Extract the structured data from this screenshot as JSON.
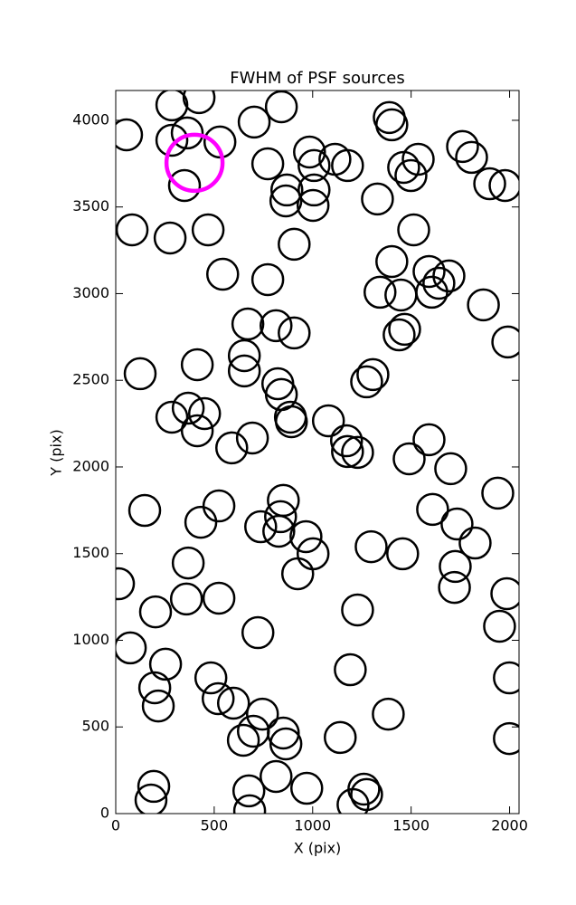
{
  "chart_data": {
    "type": "scatter",
    "title": "FWHM of PSF sources",
    "x_label": "X (pix)",
    "y_label": "Y (pix)",
    "color": "#000000",
    "xlim": [
      0,
      2048
    ],
    "ylim": [
      0,
      4172
    ],
    "xticks": [
      0,
      500,
      1000,
      1500,
      2000
    ],
    "yticks": [
      0,
      500,
      1000,
      1500,
      2000,
      2500,
      3000,
      3500,
      4000
    ],
    "x": [
      55,
      285,
      423,
      285,
      363,
      529,
      349,
      703,
      841,
      83,
      276,
      469,
      543,
      772,
      869,
      864,
      1007,
      1002,
      984,
      1113,
      1177,
      1007,
      906,
      772,
      671,
      814,
      906,
      1329,
      1389,
      1402,
      1462,
      1536,
      1499,
      1761,
      1807,
      1899,
      1977,
      1513,
      1402,
      1342,
      1448,
      1591,
      1605,
      1641,
      1692,
      1867,
      1991,
      1439,
      1467,
      653,
      653,
      414,
      124,
      823,
      841,
      892,
      887,
      1080,
      1172,
      1177,
      1228,
      1274,
      1306,
      368,
      451,
      285,
      414,
      694,
      589,
      147,
      524,
      432,
      736,
      851,
      837,
      828,
      966,
      1002,
      924,
      368,
      359,
      524,
      202,
      14,
      74,
      722,
      1228,
      1297,
      1457,
      1490,
      1591,
      1701,
      1609,
      1733,
      1825,
      1724,
      1720,
      1940,
      1986,
      1949,
      1999,
      1999,
      198,
      253,
      216,
      483,
      520,
      598,
      648,
      699,
      745,
      851,
      864,
      1191,
      1140,
      1384,
      193,
      179,
      676,
      680,
      814,
      970,
      1205,
      1260,
      1274
    ],
    "y": [
      3916,
      4089,
      4131,
      3885,
      3927,
      3875,
      3624,
      3990,
      4078,
      3368,
      3321,
      3368,
      3112,
      3749,
      3598,
      3535,
      3598,
      3509,
      3817,
      3775,
      3739,
      3739,
      3285,
      3081,
      2825,
      2815,
      2773,
      3546,
      4016,
      3974,
      3728,
      3775,
      3681,
      3849,
      3786,
      3634,
      3624,
      3368,
      3185,
      3008,
      2992,
      3128,
      3008,
      3060,
      3102,
      2935,
      2721,
      2762,
      2794,
      2642,
      2554,
      2590,
      2538,
      2480,
      2418,
      2261,
      2287,
      2266,
      2151,
      2089,
      2084,
      2491,
      2533,
      2339,
      2308,
      2287,
      2209,
      2167,
      2110,
      1749,
      1775,
      1681,
      1655,
      1807,
      1713,
      1629,
      1598,
      1499,
      1384,
      1446,
      1238,
      1243,
      1164,
      1326,
      956,
      1044,
      1175,
      1540,
      1499,
      2047,
      2157,
      1990,
      1755,
      1671,
      1561,
      1426,
      1305,
      1849,
      1269,
      1081,
      783,
      433,
      726,
      862,
      621,
      783,
      663,
      637,
      423,
      475,
      574,
      465,
      402,
      830,
      439,
      574,
      157,
      78,
      131,
      16,
      214,
      146,
      52,
      141,
      110
    ],
    "highlight": {
      "x": 400,
      "y": 3755,
      "color": "#ff00ff"
    }
  }
}
